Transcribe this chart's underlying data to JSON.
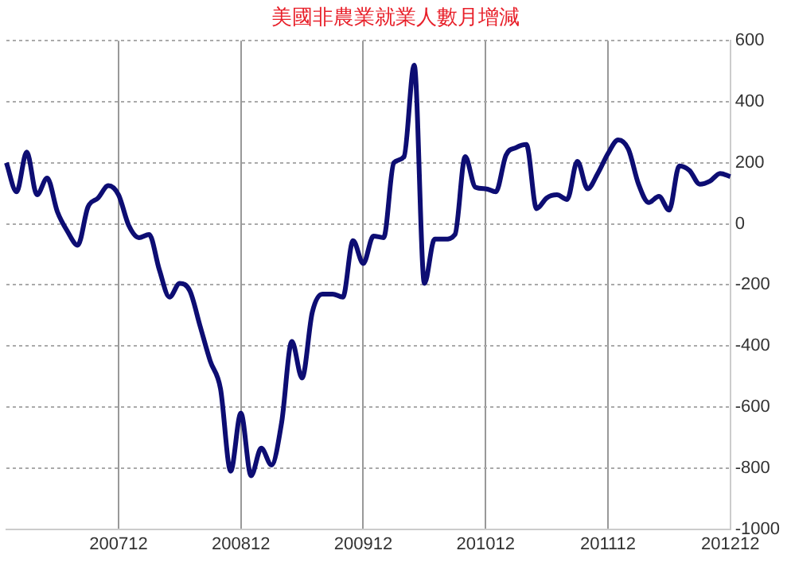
{
  "chart_data": {
    "type": "line",
    "title": "美國非農業就業人數月增減",
    "categories": [
      null,
      null,
      null,
      null,
      null,
      null,
      null,
      null,
      null,
      null,
      null,
      "200712",
      null,
      null,
      null,
      null,
      null,
      null,
      null,
      null,
      null,
      null,
      null,
      "200812",
      null,
      null,
      null,
      null,
      null,
      null,
      null,
      null,
      null,
      null,
      null,
      "200912",
      null,
      null,
      null,
      null,
      null,
      null,
      null,
      null,
      null,
      null,
      null,
      "201012",
      null,
      null,
      null,
      null,
      null,
      null,
      null,
      null,
      null,
      null,
      null,
      "201112",
      null,
      null,
      null,
      null,
      null,
      null,
      null,
      null,
      null,
      null,
      null,
      "201212"
    ],
    "series": [
      {
        "color": "#0d0d73",
        "values": [
          200,
          105,
          235,
          95,
          150,
          40,
          -25,
          -70,
          55,
          85,
          125,
          95,
          -5,
          -45,
          -35,
          -150,
          -240,
          -195,
          -220,
          -335,
          -450,
          -540,
          -810,
          -620,
          -825,
          -735,
          -790,
          -650,
          -385,
          -505,
          -290,
          -230,
          -230,
          -240,
          -55,
          -130,
          -40,
          -45,
          200,
          220,
          520,
          -195,
          -50,
          -50,
          -35,
          220,
          120,
          115,
          105,
          225,
          250,
          260,
          50,
          85,
          95,
          80,
          205,
          115,
          165,
          230,
          275,
          245,
          130,
          70,
          90,
          45,
          190,
          175,
          130,
          140,
          165,
          155
        ]
      }
    ],
    "ylim": [
      -1000,
      600
    ],
    "yticks": [
      -1000,
      -800,
      -600,
      -400,
      -200,
      0,
      200,
      400,
      600
    ],
    "grid": true,
    "legend": false,
    "marker": "none",
    "line_style": "solid"
  }
}
